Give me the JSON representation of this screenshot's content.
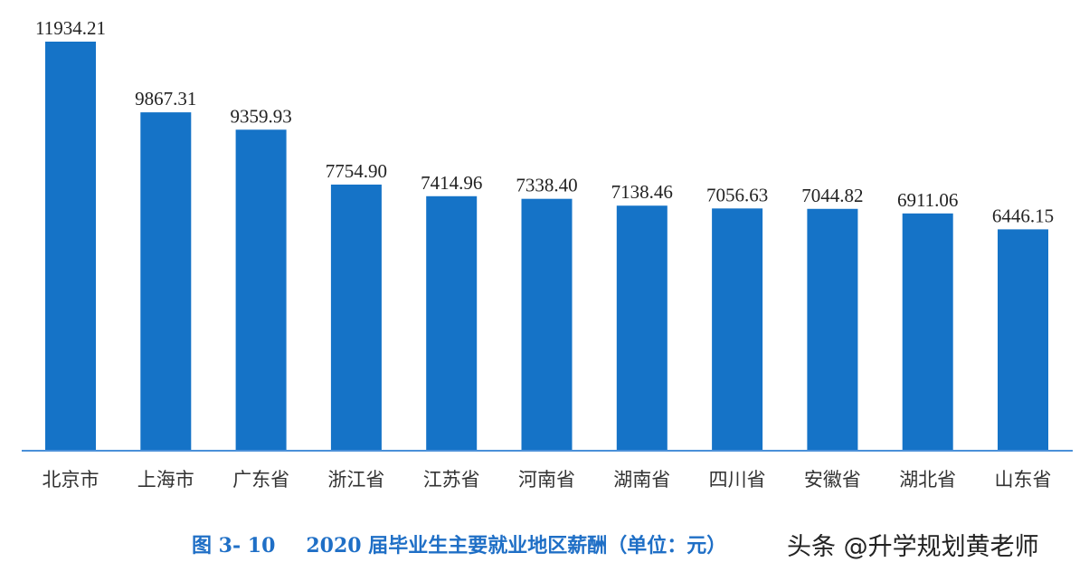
{
  "caption": {
    "figure_number": "图 3- 10",
    "title": "2020 届毕业生主要就业地区薪酬（单位：元）"
  },
  "watermark": "头条 @升学规划黄老师",
  "colors": {
    "bar": "#1573c7",
    "axis": "#4a90d9"
  },
  "chart_data": {
    "type": "bar",
    "title": "2020 届毕业生主要就业地区薪酬（单位：元）",
    "categories": [
      "北京市",
      "上海市",
      "广东省",
      "浙江省",
      "江苏省",
      "河南省",
      "湖南省",
      "四川省",
      "安徽省",
      "湖北省",
      "山东省"
    ],
    "values": [
      11934.21,
      9867.31,
      9359.93,
      7754.9,
      7414.96,
      7338.4,
      7138.46,
      7056.63,
      7044.82,
      6911.06,
      6446.15
    ],
    "value_labels": [
      "11934.21",
      "9867.31",
      "9359.93",
      "7754.90",
      "7414.96",
      "7338.40",
      "7138.46",
      "7056.63",
      "7044.82",
      "6911.06",
      "6446.15"
    ],
    "xlabel": "",
    "ylabel": "",
    "ylim": [
      0,
      12000
    ],
    "grid": false,
    "legend": "none"
  }
}
